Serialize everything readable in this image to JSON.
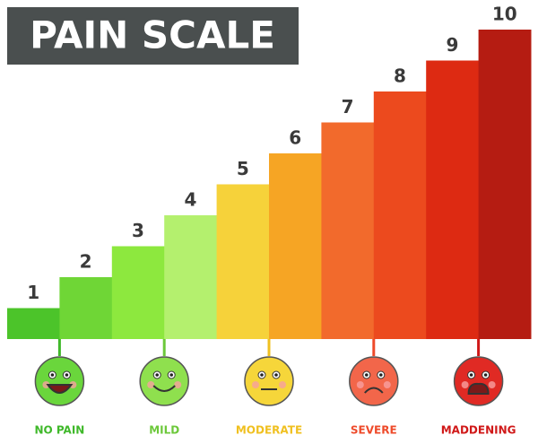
{
  "chart_data": {
    "type": "bar",
    "title": "PAIN SCALE",
    "values": [
      1,
      2,
      3,
      4,
      5,
      6,
      7,
      8,
      9,
      10
    ],
    "colors": [
      "#4cc42a",
      "#6fd636",
      "#8de83e",
      "#b4f06e",
      "#f6d23a",
      "#f6a524",
      "#f26a2c",
      "#ec4a1e",
      "#dd2a12",
      "#b51c12"
    ],
    "faces": [
      {
        "label": "NO PAIN",
        "color": "#6ad63c",
        "label_color": "#3fb82a"
      },
      {
        "label": "MILD",
        "color": "#8fe04e",
        "label_color": "#6cc83a"
      },
      {
        "label": "MODERATE",
        "color": "#f6d63a",
        "label_color": "#f0c020"
      },
      {
        "label": "SEVERE",
        "color": "#f2664a",
        "label_color": "#ee4a2a"
      },
      {
        "label": "MADDENING",
        "color": "#e02a24",
        "label_color": "#d01818"
      }
    ]
  }
}
